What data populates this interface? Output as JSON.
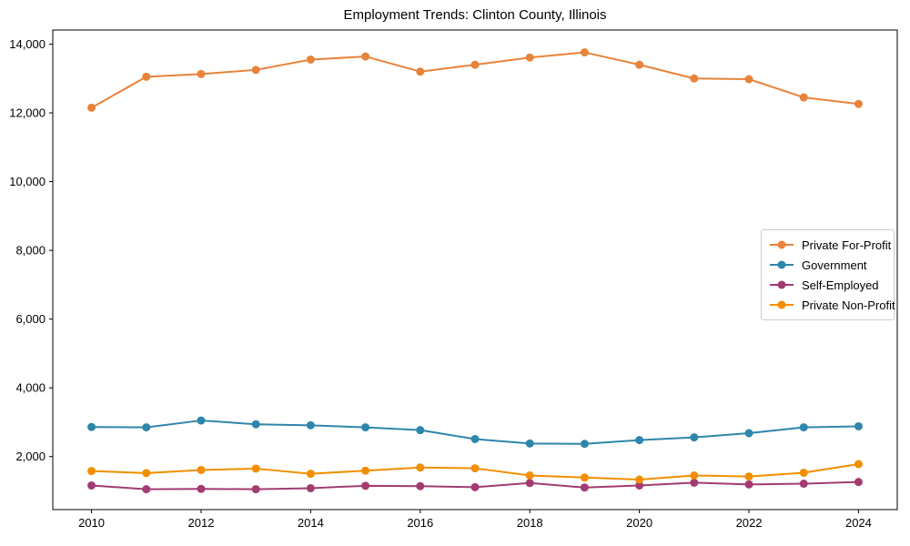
{
  "chart_data": {
    "type": "line",
    "title": "Employment Trends: Clinton County, Illinois",
    "xlabel": "",
    "ylabel": "",
    "x": [
      2010,
      2011,
      2012,
      2013,
      2014,
      2015,
      2016,
      2017,
      2018,
      2019,
      2020,
      2021,
      2022,
      2023,
      2024
    ],
    "series": [
      {
        "name": "Private For-Profit",
        "color": "#E8833A",
        "values": [
          12150,
          13050,
          13130,
          13250,
          13550,
          13640,
          13200,
          13400,
          13610,
          13760,
          13400,
          13000,
          12980,
          12450,
          12260
        ]
      },
      {
        "name": "Government",
        "color": "#2E86AB",
        "values": [
          2860,
          2850,
          3050,
          2940,
          2910,
          2850,
          2770,
          2510,
          2380,
          2370,
          2480,
          2560,
          2680,
          2850,
          2880
        ]
      },
      {
        "name": "Self-Employed",
        "color": "#A23B72",
        "values": [
          1160,
          1050,
          1060,
          1050,
          1080,
          1150,
          1140,
          1110,
          1230,
          1100,
          1160,
          1240,
          1190,
          1210,
          1260
        ]
      },
      {
        "name": "Private Non-Profit",
        "color": "#F18F01",
        "values": [
          1580,
          1520,
          1610,
          1650,
          1500,
          1590,
          1680,
          1660,
          1450,
          1390,
          1330,
          1450,
          1420,
          1530,
          1780
        ]
      }
    ],
    "xticks": [
      2010,
      2012,
      2014,
      2016,
      2018,
      2020,
      2022,
      2024
    ],
    "xtick_labels": [
      "2010",
      "2012",
      "2014",
      "2016",
      "2018",
      "2020",
      "2022",
      "2024"
    ],
    "yticks": [
      2000,
      4000,
      6000,
      8000,
      10000,
      12000,
      14000
    ],
    "ytick_labels": [
      "2,000",
      "4,000",
      "6,000",
      "8,000",
      "10,000",
      "12,000",
      "14,000"
    ],
    "xlim": [
      2009.293,
      2024.707
    ],
    "ylim": [
      457,
      14410
    ],
    "grid": false,
    "legend_position": "center right",
    "marker": "circle",
    "line_width": 2,
    "marker_radius": 4.5
  }
}
